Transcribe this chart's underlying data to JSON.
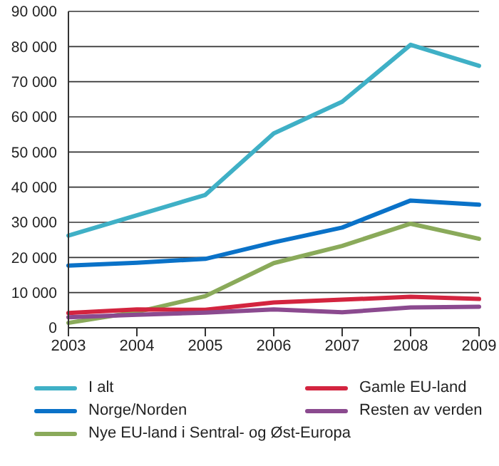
{
  "chart_data": {
    "type": "line",
    "categories": [
      "2003",
      "2004",
      "2005",
      "2006",
      "2007",
      "2008",
      "2009"
    ],
    "series": [
      {
        "name": "I alt",
        "color": "#3fb0c6",
        "values": [
          26200,
          32000,
          37800,
          55300,
          64300,
          80500,
          74500
        ]
      },
      {
        "name": "Norge/Norden",
        "color": "#0a72c8",
        "values": [
          17700,
          18500,
          19600,
          24300,
          28500,
          36200,
          35000
        ]
      },
      {
        "name": "Nye EU-land i Sentral- og Øst-Europa",
        "color": "#8aaa5a",
        "values": [
          1400,
          4500,
          9000,
          18400,
          23300,
          29600,
          25300
        ]
      },
      {
        "name": "Gamle EU-land",
        "color": "#d3243f",
        "values": [
          4200,
          5200,
          5100,
          7200,
          8000,
          8800,
          8200
        ]
      },
      {
        "name": "Resten av verden",
        "color": "#8b4a8f",
        "values": [
          3000,
          3700,
          4300,
          5200,
          4400,
          5800,
          6000
        ]
      }
    ],
    "ylim": [
      0,
      90000
    ],
    "yticks": [
      {
        "value": 0,
        "label": "0"
      },
      {
        "value": 10000,
        "label": "10 000"
      },
      {
        "value": 20000,
        "label": "20 000"
      },
      {
        "value": 30000,
        "label": "30 000"
      },
      {
        "value": 40000,
        "label": "40 000"
      },
      {
        "value": 50000,
        "label": "50 000"
      },
      {
        "value": 60000,
        "label": "60 000"
      },
      {
        "value": 70000,
        "label": "70 000"
      },
      {
        "value": 80000,
        "label": "80 000"
      },
      {
        "value": 90000,
        "label": "90 000"
      }
    ],
    "grid": "y",
    "legend": "bottom",
    "marker": "none",
    "line_style": "solid"
  }
}
